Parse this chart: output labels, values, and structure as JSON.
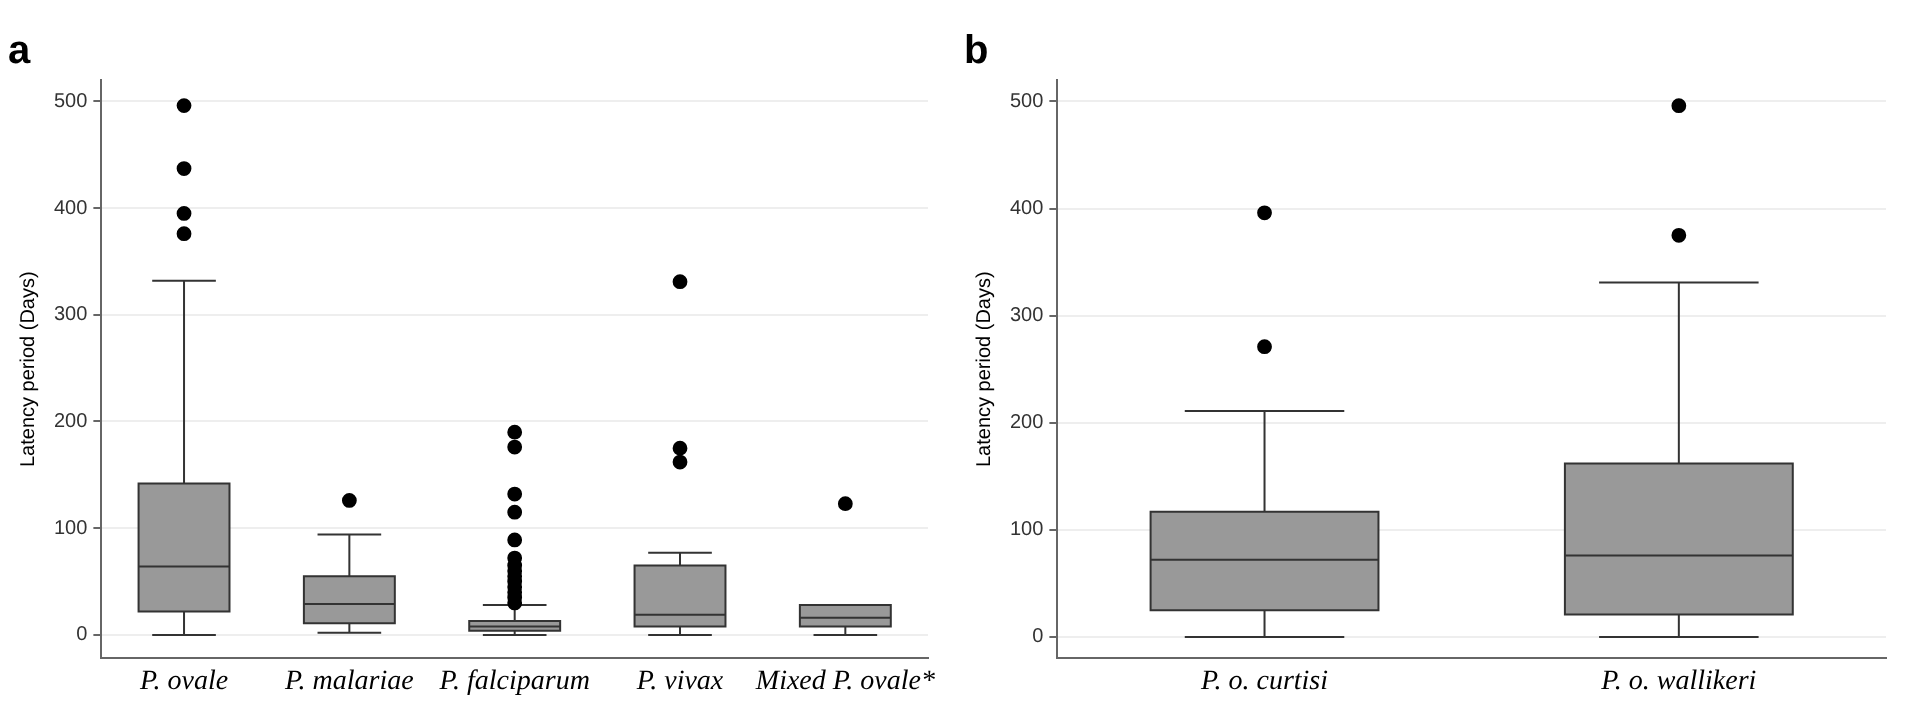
{
  "chart_data": [
    {
      "type": "box",
      "title": "a",
      "ylabel": "Latency period (Days)",
      "categories": [
        "P. ovale",
        "P. malariae",
        "P. falciparum",
        "P. vivax",
        "Mixed P. ovale*"
      ],
      "color": "#999999",
      "ylim": [
        -22,
        520
      ],
      "yticks": [
        0,
        100,
        200,
        300,
        400,
        500
      ],
      "grid": "y",
      "marker": "circle",
      "boxes": [
        {
          "low": 0,
          "q1": 22,
          "median": 64,
          "q3": 142,
          "high": 332,
          "outliers": [
            376,
            395,
            437,
            496
          ]
        },
        {
          "low": 2,
          "q1": 11,
          "median": 29,
          "q3": 55,
          "high": 94,
          "outliers": [
            126
          ]
        },
        {
          "low": 0,
          "q1": 4,
          "median": 8,
          "q3": 13,
          "high": 28,
          "outliers": [
            30,
            35,
            40,
            45,
            50,
            55,
            60,
            65,
            72,
            89,
            115,
            132,
            176,
            190
          ]
        },
        {
          "low": 0,
          "q1": 8,
          "median": 19,
          "q3": 65,
          "high": 77,
          "outliers": [
            162,
            175,
            331
          ]
        },
        {
          "low": 0,
          "q1": 8,
          "median": 16,
          "q3": 28,
          "high": 28,
          "outliers": [
            123
          ]
        }
      ]
    },
    {
      "type": "box",
      "title": "b",
      "ylabel": "Latency period (Days)",
      "categories": [
        "P. o. curtisi",
        "P. o. wallikeri"
      ],
      "color": "#999999",
      "ylim": [
        -20,
        520
      ],
      "yticks": [
        0,
        100,
        200,
        300,
        400,
        500
      ],
      "grid": "y",
      "marker": "circle",
      "boxes": [
        {
          "low": 0,
          "q1": 25,
          "median": 72,
          "q3": 117,
          "high": 211,
          "outliers": [
            271,
            396
          ]
        },
        {
          "low": 0,
          "q1": 21,
          "median": 76,
          "q3": 162,
          "high": 331,
          "outliers": [
            375,
            496
          ]
        }
      ]
    }
  ]
}
